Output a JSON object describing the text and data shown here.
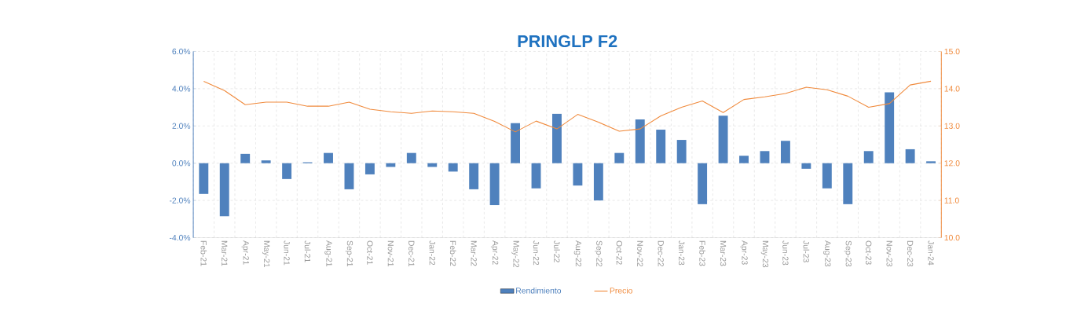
{
  "chart_data": {
    "type": "bar",
    "title": "PRINGLP F2",
    "categories": [
      "Feb-21",
      "Mar-21",
      "Apr-21",
      "May-21",
      "Jun-21",
      "Jul-21",
      "Aug-21",
      "Sep-21",
      "Oct-21",
      "Nov-21",
      "Dec-21",
      "Jan-22",
      "Feb-22",
      "Mar-22",
      "Apr-22",
      "May-22",
      "Jun-22",
      "Jul-22",
      "Aug-22",
      "Sep-22",
      "Oct-22",
      "Nov-22",
      "Dec-22",
      "Jan-23",
      "Feb-23",
      "Mar-23",
      "Apr-23",
      "May-23",
      "Jun-23",
      "Jul-23",
      "Aug-23",
      "Sep-23",
      "Oct-23",
      "Nov-23",
      "Dec-23",
      "Jan-24"
    ],
    "series": [
      {
        "name": "Rendimiento",
        "color": "#4f81bd",
        "values": [
          -1.65,
          -2.85,
          0.5,
          0.15,
          -0.85,
          0.05,
          0.55,
          -1.4,
          -0.6,
          -0.2,
          0.55,
          -0.2,
          -0.45,
          -1.4,
          -2.25,
          2.15,
          -1.35,
          2.65,
          -1.2,
          -2.0,
          0.55,
          2.35,
          1.8,
          1.25,
          -2.2,
          2.55,
          0.4,
          0.65,
          1.2,
          -0.3,
          -1.35,
          -2.2,
          0.65,
          3.8,
          0.75,
          0.1
        ]
      },
      {
        "name": "Precio",
        "type": "line",
        "axis": "y2",
        "color": "#f08a3c",
        "values": [
          14.2,
          13.95,
          13.57,
          13.64,
          13.64,
          13.53,
          13.53,
          13.64,
          13.45,
          13.38,
          13.34,
          13.4,
          13.38,
          13.34,
          13.12,
          12.84,
          13.13,
          12.92,
          13.31,
          13.1,
          12.86,
          12.92,
          13.27,
          13.5,
          13.67,
          13.36,
          13.71,
          13.78,
          13.87,
          14.04,
          13.97,
          13.8,
          13.5,
          13.6,
          14.1,
          14.2
        ]
      }
    ],
    "ylim": [
      -4,
      6
    ],
    "yticks": [
      {
        "value": -4,
        "label": "-4.0%"
      },
      {
        "value": -2,
        "label": "-2.0%"
      },
      {
        "value": 0,
        "label": "0.0%"
      },
      {
        "value": 2,
        "label": "2.0%"
      },
      {
        "value": 4,
        "label": "4.0%"
      },
      {
        "value": 6,
        "label": "6.0%"
      }
    ],
    "y2lim": [
      10,
      15
    ],
    "y2ticks": [
      {
        "value": 10,
        "label": "10.0"
      },
      {
        "value": 11,
        "label": "11.0"
      },
      {
        "value": 12,
        "label": "12.0"
      },
      {
        "value": 13,
        "label": "13.0"
      },
      {
        "value": 14,
        "label": "14.0"
      },
      {
        "value": 15,
        "label": "15.0"
      }
    ],
    "grid": true,
    "legend": "bottom"
  }
}
